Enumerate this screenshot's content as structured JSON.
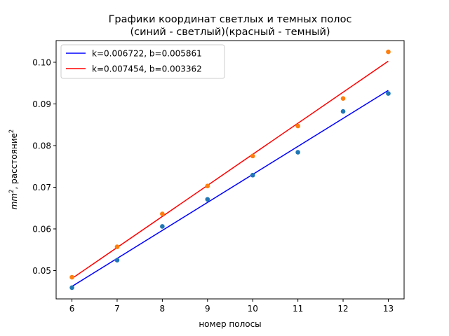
{
  "chart_data": {
    "type": "scatter",
    "title_line1": "Графики координат светлых и темных полос",
    "title_line2": "(синий - светлый)(красный - темный)",
    "xlabel": "номер полосы",
    "ylabel_base": "mm",
    "ylabel_sup": "2",
    "ylabel_mid": ", расстояние",
    "ylabel_sup2": "2",
    "xlim": [
      5.65,
      13.35
    ],
    "ylim": [
      0.0432,
      0.1052
    ],
    "xticks": [
      "6",
      "7",
      "8",
      "9",
      "10",
      "11",
      "12",
      "13"
    ],
    "xtick_values": [
      6,
      7,
      8,
      9,
      10,
      11,
      12,
      13
    ],
    "yticks": [
      "0.05",
      "0.06",
      "0.07",
      "0.08",
      "0.09",
      "0.10"
    ],
    "ytick_values": [
      0.05,
      0.06,
      0.07,
      0.08,
      0.09,
      0.1
    ],
    "legend_position": "upper-left",
    "x": [
      6,
      7,
      8,
      9,
      10,
      11,
      12,
      13
    ],
    "series": [
      {
        "kind": "points",
        "color": "#1f77b4",
        "values": [
          0.0459,
          0.0525,
          0.0606,
          0.0671,
          0.0729,
          0.0784,
          0.0882,
          0.0925
        ]
      },
      {
        "kind": "points",
        "color": "#ff7f0e",
        "values": [
          0.0484,
          0.0557,
          0.0636,
          0.0703,
          0.0775,
          0.0847,
          0.0913,
          0.1025
        ]
      },
      {
        "kind": "fit-line",
        "name": "k=0.006722, b=0.005861",
        "color": "#0000ff",
        "k": 0.006722,
        "b": 0.005861
      },
      {
        "kind": "fit-line",
        "name": "k=0.007454, b=0.003362",
        "color": "#ff0000",
        "k": 0.007454,
        "b": 0.003362
      }
    ]
  }
}
